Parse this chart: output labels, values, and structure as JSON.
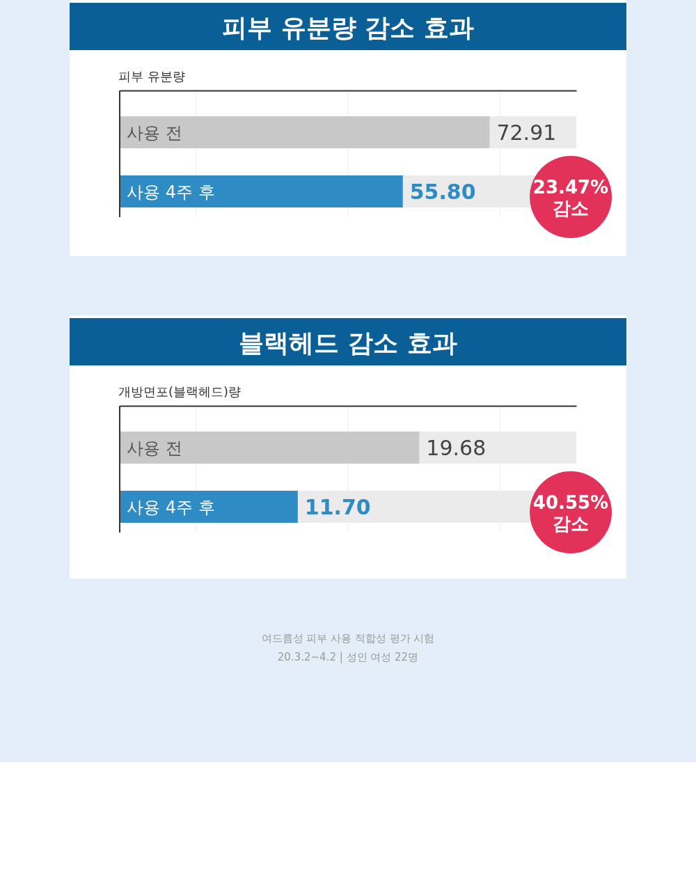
{
  "chart_data": [
    {
      "type": "bar",
      "orientation": "horizontal",
      "title": "피부 유분량 감소 효과",
      "ylabel": "피부 유분량",
      "categories": [
        "사용 전",
        "사용 4주 후"
      ],
      "values": [
        72.91,
        55.8
      ],
      "value_labels": [
        "72.91",
        "55.80"
      ],
      "colors": [
        "#c8c8c8",
        "#2e8bc3"
      ],
      "xlim": [
        0,
        90
      ],
      "xticks": [
        {
          "value": 15,
          "label": null
        },
        {
          "value": 45,
          "label": null
        },
        {
          "value": 75,
          "label": null
        }
      ],
      "grid": "x",
      "annotations": [
        "23.47% 감소"
      ]
    },
    {
      "type": "bar",
      "orientation": "horizontal",
      "title": "블랙헤드 감소 효과",
      "ylabel": "개방면포(블랙헤드)량",
      "categories": [
        "사용 전",
        "사용 4주 후"
      ],
      "values": [
        19.68,
        11.7
      ],
      "value_labels": [
        "19.68",
        "11.70"
      ],
      "colors": [
        "#c8c8c8",
        "#2e8bc3"
      ],
      "xlim": [
        0,
        30
      ],
      "xticks": [
        {
          "value": 5,
          "label": null
        },
        {
          "value": 15,
          "label": null
        },
        {
          "value": 25,
          "label": null
        }
      ],
      "grid": "x",
      "annotations": [
        "40.55% 감소",
        "여드름성 피부 사용 적합성 평가 시험",
        "20.3.2~4.2 | 성인 여성 22명"
      ]
    }
  ]
}
